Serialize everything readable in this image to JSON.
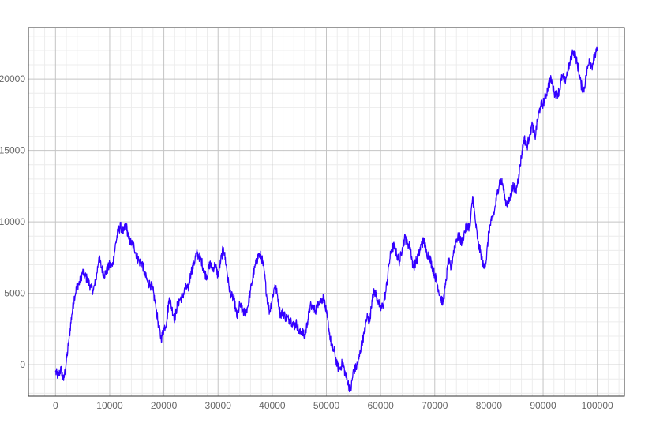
{
  "chart_data": {
    "type": "line",
    "title": "",
    "xlabel": "",
    "ylabel": "",
    "xlim": [
      -5000,
      105000
    ],
    "ylim": [
      -2200,
      23600
    ],
    "grid": true,
    "legend": "none",
    "x_ticks": [
      0,
      10000,
      20000,
      30000,
      40000,
      50000,
      60000,
      70000,
      80000,
      90000,
      100000
    ],
    "x_tick_labels": [
      "0",
      "10000",
      "20000",
      "30000",
      "40000",
      "50000",
      "60000",
      "70000",
      "80000",
      "90000",
      "100000"
    ],
    "y_ticks": [
      0,
      5000,
      10000,
      15000,
      20000
    ],
    "y_tick_labels": [
      "0",
      "5000",
      "10000",
      "15000",
      "20000"
    ],
    "series": [
      {
        "color": "#3300ff",
        "points": [
          [
            0,
            -500
          ],
          [
            500,
            -800
          ],
          [
            1000,
            -300
          ],
          [
            1500,
            -1100
          ],
          [
            2000,
            200
          ],
          [
            2500,
            1800
          ],
          [
            3000,
            3500
          ],
          [
            3500,
            4800
          ],
          [
            4000,
            5500
          ],
          [
            4500,
            5800
          ],
          [
            5000,
            6500
          ],
          [
            5500,
            6200
          ],
          [
            6000,
            5900
          ],
          [
            6500,
            5400
          ],
          [
            7000,
            5200
          ],
          [
            7500,
            6000
          ],
          [
            8000,
            7500
          ],
          [
            8500,
            6800
          ],
          [
            9000,
            6300
          ],
          [
            9500,
            6600
          ],
          [
            10000,
            7000
          ],
          [
            10500,
            6900
          ],
          [
            11000,
            8200
          ],
          [
            11500,
            9300
          ],
          [
            12000,
            9700
          ],
          [
            12500,
            9200
          ],
          [
            13000,
            9900
          ],
          [
            13500,
            8800
          ],
          [
            14000,
            8500
          ],
          [
            14500,
            8300
          ],
          [
            15000,
            7600
          ],
          [
            15500,
            7200
          ],
          [
            16000,
            7100
          ],
          [
            16500,
            6300
          ],
          [
            17000,
            5800
          ],
          [
            17500,
            5600
          ],
          [
            18000,
            5200
          ],
          [
            18500,
            4100
          ],
          [
            19000,
            2800
          ],
          [
            19500,
            1800
          ],
          [
            20000,
            2500
          ],
          [
            20500,
            3000
          ],
          [
            21000,
            4700
          ],
          [
            21500,
            3900
          ],
          [
            22000,
            3200
          ],
          [
            22500,
            4200
          ],
          [
            23000,
            4600
          ],
          [
            23500,
            4800
          ],
          [
            24000,
            5400
          ],
          [
            24500,
            5300
          ],
          [
            25000,
            6500
          ],
          [
            25500,
            7000
          ],
          [
            26000,
            7800
          ],
          [
            26500,
            7600
          ],
          [
            27000,
            7200
          ],
          [
            27500,
            6400
          ],
          [
            28000,
            6200
          ],
          [
            28500,
            7100
          ],
          [
            29000,
            6700
          ],
          [
            29500,
            7000
          ],
          [
            30000,
            6200
          ],
          [
            30500,
            7300
          ],
          [
            31000,
            8200
          ],
          [
            31500,
            7000
          ],
          [
            32000,
            5500
          ],
          [
            32500,
            4800
          ],
          [
            33000,
            4500
          ],
          [
            33500,
            3300
          ],
          [
            34000,
            4200
          ],
          [
            34500,
            3800
          ],
          [
            35000,
            3600
          ],
          [
            35500,
            4100
          ],
          [
            36000,
            5200
          ],
          [
            36500,
            6300
          ],
          [
            37000,
            7100
          ],
          [
            37500,
            7700
          ],
          [
            38000,
            7600
          ],
          [
            38500,
            6600
          ],
          [
            39000,
            4800
          ],
          [
            39500,
            3700
          ],
          [
            40000,
            4600
          ],
          [
            40500,
            5600
          ],
          [
            41000,
            4800
          ],
          [
            41500,
            3500
          ],
          [
            42000,
            3700
          ],
          [
            42500,
            3300
          ],
          [
            43000,
            3200
          ],
          [
            43500,
            3100
          ],
          [
            44000,
            2700
          ],
          [
            44500,
            2900
          ],
          [
            45000,
            2200
          ],
          [
            45500,
            2400
          ],
          [
            46000,
            1900
          ],
          [
            46500,
            3000
          ],
          [
            47000,
            4100
          ],
          [
            47500,
            4000
          ],
          [
            48000,
            3800
          ],
          [
            48500,
            4400
          ],
          [
            49000,
            4500
          ],
          [
            49500,
            4700
          ],
          [
            50000,
            3600
          ],
          [
            50500,
            2400
          ],
          [
            51000,
            1200
          ],
          [
            51500,
            900
          ],
          [
            52000,
            -100
          ],
          [
            52500,
            -300
          ],
          [
            53000,
            200
          ],
          [
            53500,
            -700
          ],
          [
            54000,
            -1300
          ],
          [
            54500,
            -1800
          ],
          [
            55000,
            -400
          ],
          [
            55500,
            -200
          ],
          [
            56000,
            400
          ],
          [
            56500,
            1500
          ],
          [
            57000,
            2200
          ],
          [
            57500,
            3400
          ],
          [
            58000,
            3000
          ],
          [
            58500,
            4900
          ],
          [
            59000,
            5100
          ],
          [
            59500,
            4500
          ],
          [
            60000,
            3900
          ],
          [
            60500,
            4200
          ],
          [
            61000,
            5200
          ],
          [
            61500,
            6900
          ],
          [
            62000,
            8100
          ],
          [
            62500,
            8300
          ],
          [
            63000,
            7700
          ],
          [
            63500,
            7200
          ],
          [
            64000,
            8200
          ],
          [
            64500,
            8900
          ],
          [
            65000,
            8500
          ],
          [
            65500,
            8200
          ],
          [
            66000,
            6800
          ],
          [
            66500,
            7200
          ],
          [
            67000,
            7600
          ],
          [
            67500,
            8400
          ],
          [
            68000,
            8700
          ],
          [
            68500,
            7800
          ],
          [
            69000,
            7600
          ],
          [
            69500,
            6900
          ],
          [
            70000,
            6300
          ],
          [
            70500,
            5600
          ],
          [
            71000,
            4800
          ],
          [
            71500,
            4300
          ],
          [
            72000,
            5600
          ],
          [
            72500,
            7300
          ],
          [
            73000,
            6700
          ],
          [
            73500,
            8000
          ],
          [
            74000,
            8800
          ],
          [
            74500,
            9000
          ],
          [
            75000,
            8500
          ],
          [
            75500,
            9300
          ],
          [
            76000,
            9800
          ],
          [
            76500,
            9600
          ],
          [
            77000,
            11800
          ],
          [
            77500,
            10000
          ],
          [
            78000,
            8500
          ],
          [
            78500,
            7800
          ],
          [
            79000,
            6800
          ],
          [
            79500,
            7300
          ],
          [
            80000,
            9400
          ],
          [
            80500,
            10100
          ],
          [
            81000,
            10700
          ],
          [
            81500,
            11900
          ],
          [
            82000,
            12900
          ],
          [
            82500,
            12700
          ],
          [
            83000,
            11500
          ],
          [
            83500,
            11200
          ],
          [
            84000,
            11800
          ],
          [
            84500,
            12600
          ],
          [
            85000,
            12100
          ],
          [
            85500,
            13300
          ],
          [
            86000,
            14600
          ],
          [
            86500,
            15900
          ],
          [
            87000,
            15200
          ],
          [
            87500,
            16100
          ],
          [
            88000,
            16800
          ],
          [
            88500,
            15900
          ],
          [
            89000,
            17200
          ],
          [
            89500,
            18100
          ],
          [
            90000,
            18300
          ],
          [
            90500,
            18800
          ],
          [
            91000,
            19600
          ],
          [
            91500,
            20000
          ],
          [
            92000,
            19100
          ],
          [
            92500,
            18900
          ],
          [
            93000,
            19200
          ],
          [
            93500,
            20200
          ],
          [
            94000,
            19800
          ],
          [
            94500,
            20500
          ],
          [
            95000,
            21200
          ],
          [
            95500,
            22000
          ],
          [
            96000,
            21600
          ],
          [
            96500,
            20700
          ],
          [
            97000,
            19600
          ],
          [
            97500,
            19200
          ],
          [
            98000,
            20300
          ],
          [
            98500,
            21400
          ],
          [
            99000,
            20900
          ],
          [
            99500,
            21600
          ],
          [
            100000,
            22000
          ]
        ]
      }
    ]
  }
}
